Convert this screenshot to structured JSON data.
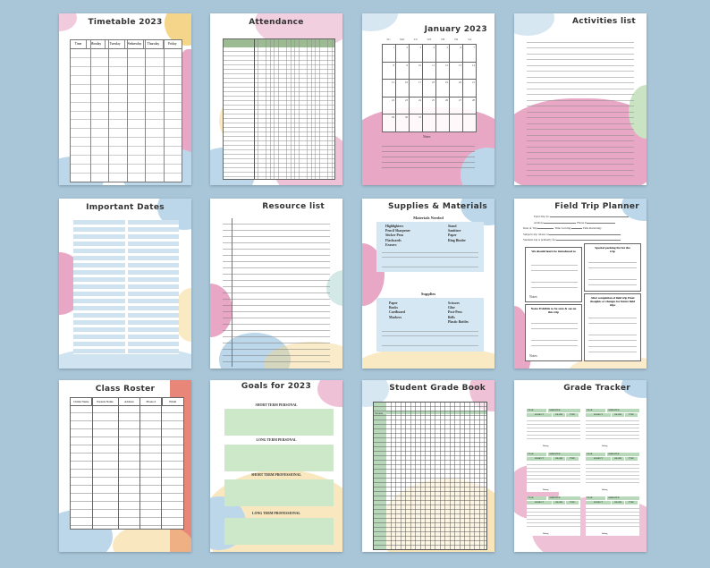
{
  "colors": {
    "background": "#a9c6d9",
    "pink": "#e8a7c4",
    "blue": "#bcd7ea",
    "yellow": "#f4d58a",
    "green": "#c9e3c3",
    "teal": "#a8d4cf",
    "orange": "#f0c59a",
    "red": "#e9867a"
  },
  "pages": [
    {
      "title": "Timetable 2023",
      "columns": [
        "Time",
        "Monday",
        "Tuesday",
        "Wednesday",
        "Thursday",
        "Friday"
      ]
    },
    {
      "title": "Attendance"
    },
    {
      "title": "January 2023",
      "weekdays": [
        "SU",
        "MO",
        "TU",
        "WE",
        "TH",
        "FR",
        "SA"
      ],
      "days": [
        "1",
        "2",
        "3",
        "4",
        "5",
        "6",
        "7",
        "8",
        "9",
        "10",
        "11",
        "12",
        "13",
        "14",
        "15",
        "16",
        "17",
        "18",
        "19",
        "20",
        "21",
        "22",
        "23",
        "24",
        "25",
        "26",
        "27",
        "28",
        "29",
        "30",
        "31"
      ],
      "notes_label": "Notes"
    },
    {
      "title": "Activities list"
    },
    {
      "title": "Important Dates"
    },
    {
      "title": "Resource list"
    },
    {
      "title": "Supplies & Materials",
      "section1": "Materials Needed",
      "items1_left": [
        "Highlighters",
        "Pencil Sharpener",
        "Sticker Pens",
        "Flashcards",
        "Erasers"
      ],
      "items1_right": [
        "Stand",
        "Sanitizer",
        "Paper",
        "Ring Binder"
      ],
      "section2": "Supplies",
      "items2_left": [
        "Paper",
        "Books",
        "Cardboard",
        "Markers"
      ],
      "items2_right": [
        "Scissors",
        "Glue",
        "Post-Pens",
        "Bells",
        "Plastic Bottles"
      ]
    },
    {
      "title": "Field Trip Planner",
      "fields": [
        "Field Trip To:",
        "Address:",
        "Phone #:",
        "Date of Trip:",
        "Time Leaving:",
        "Time Returning:",
        "Subjects trip relates to:",
        "Students trip is primarily for:"
      ],
      "box1": "We should learn be introduced to",
      "box2": "Special packing list for the trip",
      "box3": "Notes Exhibits to be sure & see on this trip",
      "box4": "After completion of field trip Final thoughts or changes for future field trips",
      "notes_label": "Notes:"
    },
    {
      "title": "Class Roster",
      "columns": [
        "Childs Name",
        "Parents Name",
        "Address",
        "Phone #",
        "Email"
      ]
    },
    {
      "title": "Goals for 2023",
      "goals": [
        "SHORT TERM PERSONAL",
        "LONG TERM PERSONAL",
        "SHORT TERM PROFESSIONAL",
        "LONG TERM PROFESSIONAL"
      ]
    },
    {
      "title": "Student Grade Book",
      "row_header": "Student"
    },
    {
      "title": "Grade Tracker",
      "labels": [
        "YEAR",
        "SEMESTER",
        "SUBJECT",
        "GRADE",
        "TYPE",
        "Rating"
      ]
    }
  ]
}
